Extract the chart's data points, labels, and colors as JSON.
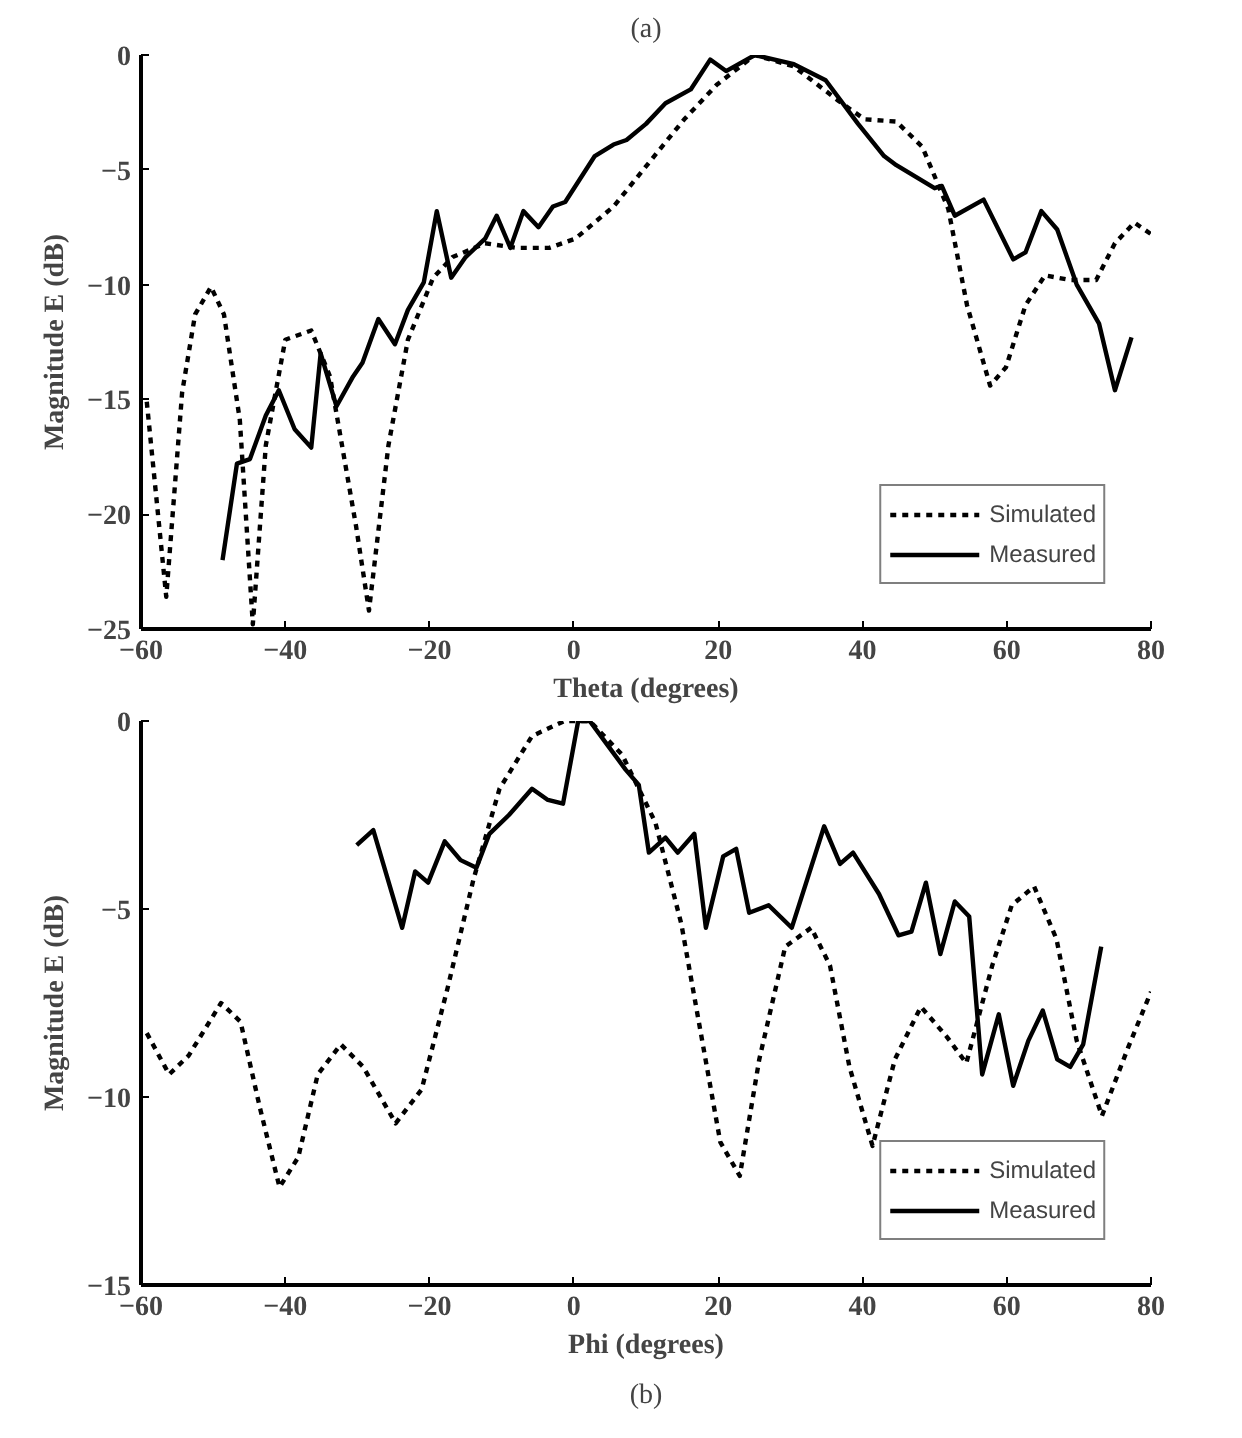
{
  "chart_data": [
    {
      "type": "line",
      "title": "(a)",
      "xlabel": "Theta (degrees)",
      "ylabel": "Magnitude E (dB)",
      "xlim": [
        -60,
        80
      ],
      "ylim": [
        -25,
        0
      ],
      "xticks": [
        -60,
        -40,
        -20,
        0,
        20,
        40,
        60,
        80
      ],
      "yticks": [
        -25,
        -20,
        -15,
        -10,
        -5,
        0
      ],
      "legend": "bottom right",
      "series": [
        {
          "name": "Simulated",
          "color": "#000000",
          "line_style": "dotted",
          "x": [
            -59.2,
            -56.5,
            -54.3,
            -52.5,
            -50.3,
            -48.5,
            -46.3,
            -44.5,
            -42.7,
            -40,
            -36.4,
            -33.8,
            -30.2,
            -28.4,
            -25.7,
            -23,
            -19.5,
            -16.8,
            -12.3,
            -7.9,
            -3.4,
            0.2,
            5.5,
            10.9,
            15.3,
            19.8,
            25.1,
            30.5,
            36.7,
            40.3,
            44.7,
            48.3,
            51.9,
            54.5,
            57.7,
            59.9,
            62.6,
            65.3,
            68.8,
            72.4,
            75,
            77.7,
            80
          ],
          "values": [
            -15.1,
            -23.6,
            -14.7,
            -11.3,
            -10.1,
            -11.3,
            -15.9,
            -24.8,
            -17,
            -12.4,
            -12,
            -14,
            -20.5,
            -24.2,
            -17,
            -12.4,
            -9.7,
            -8.8,
            -8.2,
            -8.4,
            -8.4,
            -8,
            -6.6,
            -4.5,
            -2.8,
            -1.3,
            0,
            -0.5,
            -2,
            -2.8,
            -2.9,
            -4,
            -6.7,
            -10.9,
            -14.4,
            -13.6,
            -10.9,
            -9.6,
            -9.8,
            -9.8,
            -8.2,
            -7.3,
            -7.8
          ]
        },
        {
          "name": "Measured",
          "color": "#000000",
          "line_style": "solid",
          "x": [
            -48.7,
            -46.7,
            -44.9,
            -42.7,
            -40.9,
            -38.7,
            -36.4,
            -35.1,
            -32.9,
            -30.6,
            -29.3,
            -27.1,
            -24.8,
            -23,
            -20.8,
            -19,
            -17,
            -15,
            -12.3,
            -10.7,
            -8.8,
            -7,
            -4.9,
            -2.9,
            -1.2,
            2.9,
            5.5,
            7.3,
            10,
            12.7,
            16.2,
            18.9,
            21.1,
            25.1,
            30.5,
            34.9,
            39.4,
            43,
            44.7,
            50,
            51,
            52.8,
            56.8,
            60.9,
            62.6,
            64.8,
            67,
            69.7,
            72.8,
            75,
            77.3
          ],
          "values": [
            -22,
            -17.8,
            -17.6,
            -15.7,
            -14.6,
            -16.3,
            -17.1,
            -13,
            -15.3,
            -14,
            -13.4,
            -11.5,
            -12.6,
            -11.1,
            -9.9,
            -6.8,
            -9.7,
            -8.8,
            -8,
            -7,
            -8.4,
            -6.8,
            -7.5,
            -6.6,
            -6.4,
            -4.4,
            -3.9,
            -3.7,
            -3,
            -2.1,
            -1.5,
            -0.2,
            -0.7,
            0,
            -0.4,
            -1.1,
            -3,
            -4.4,
            -4.8,
            -5.8,
            -5.7,
            -7,
            -6.3,
            -8.9,
            -8.6,
            -6.8,
            -7.6,
            -10,
            -11.7,
            -14.6,
            -12.3
          ]
        }
      ]
    },
    {
      "type": "line",
      "xlabel": "Phi (degrees)",
      "ylabel": "Magnitude E (dB)",
      "annotations": [
        "(b)"
      ],
      "xlim": [
        -60,
        80
      ],
      "ylim": [
        -15,
        0
      ],
      "xticks": [
        -60,
        -40,
        -20,
        0,
        20,
        40,
        60,
        80
      ],
      "yticks": [
        -15,
        -10,
        -5,
        0
      ],
      "legend": "bottom right",
      "series": [
        {
          "name": "Simulated",
          "color": "#000000",
          "line_style": "dotted",
          "x": [
            -59.2,
            -56.1,
            -53.4,
            -48.9,
            -46.2,
            -43.5,
            -40.8,
            -38.2,
            -35.5,
            -32.3,
            -29.2,
            -24.7,
            -21.1,
            -17.5,
            -13.9,
            -10.3,
            -5.8,
            -1.3,
            2.2,
            6.7,
            11.3,
            14.9,
            17.6,
            20.3,
            23,
            25.7,
            29.3,
            32.9,
            35.5,
            38.2,
            41.4,
            44.5,
            48.1,
            51.7,
            54.4,
            58,
            60.7,
            63.8,
            66.9,
            69.7,
            73.2,
            76.8,
            80
          ],
          "values": [
            -8.3,
            -9.4,
            -8.9,
            -7.5,
            -8,
            -10.3,
            -12.4,
            -11.6,
            -9.4,
            -8.6,
            -9.2,
            -10.7,
            -9.8,
            -7.1,
            -4.2,
            -1.8,
            -0.4,
            0,
            0,
            -0.9,
            -2.7,
            -5.4,
            -8.3,
            -11.2,
            -12.1,
            -9,
            -6,
            -5.5,
            -6.5,
            -9.2,
            -11.3,
            -9,
            -7.6,
            -8.4,
            -9.1,
            -6.5,
            -4.9,
            -4.4,
            -5.8,
            -8.5,
            -10.5,
            -8.7,
            -7.2
          ]
        },
        {
          "name": "Measured",
          "color": "#000000",
          "line_style": "solid",
          "x": [
            -30.1,
            -27.8,
            -23.8,
            -22,
            -20.2,
            -17.9,
            -15.7,
            -13.5,
            -11.7,
            -9,
            -5.8,
            -3.6,
            -1.5,
            0.6,
            2.2,
            4.9,
            7.2,
            9,
            10.4,
            12.7,
            14.4,
            16.7,
            18.3,
            20.7,
            22.5,
            24.3,
            27,
            30.2,
            34.7,
            36.9,
            38.7,
            42.3,
            45,
            46.8,
            48.8,
            50.8,
            52.8,
            54.8,
            56.6,
            58.9,
            60.9,
            63,
            65,
            67,
            68.8,
            70.6,
            73.1
          ],
          "values": [
            -3.3,
            -2.9,
            -5.5,
            -4,
            -4.3,
            -3.2,
            -3.7,
            -3.9,
            -3,
            -2.5,
            -1.8,
            -2.1,
            -2.2,
            0,
            0,
            -0.7,
            -1.3,
            -1.7,
            -3.5,
            -3.1,
            -3.5,
            -3,
            -5.5,
            -3.6,
            -3.4,
            -5.1,
            -4.9,
            -5.5,
            -2.8,
            -3.8,
            -3.5,
            -4.6,
            -5.7,
            -5.6,
            -4.3,
            -6.2,
            -4.8,
            -5.2,
            -9.4,
            -7.8,
            -9.7,
            -8.5,
            -7.7,
            -9,
            -9.2,
            -8.6,
            -6
          ]
        }
      ]
    }
  ]
}
